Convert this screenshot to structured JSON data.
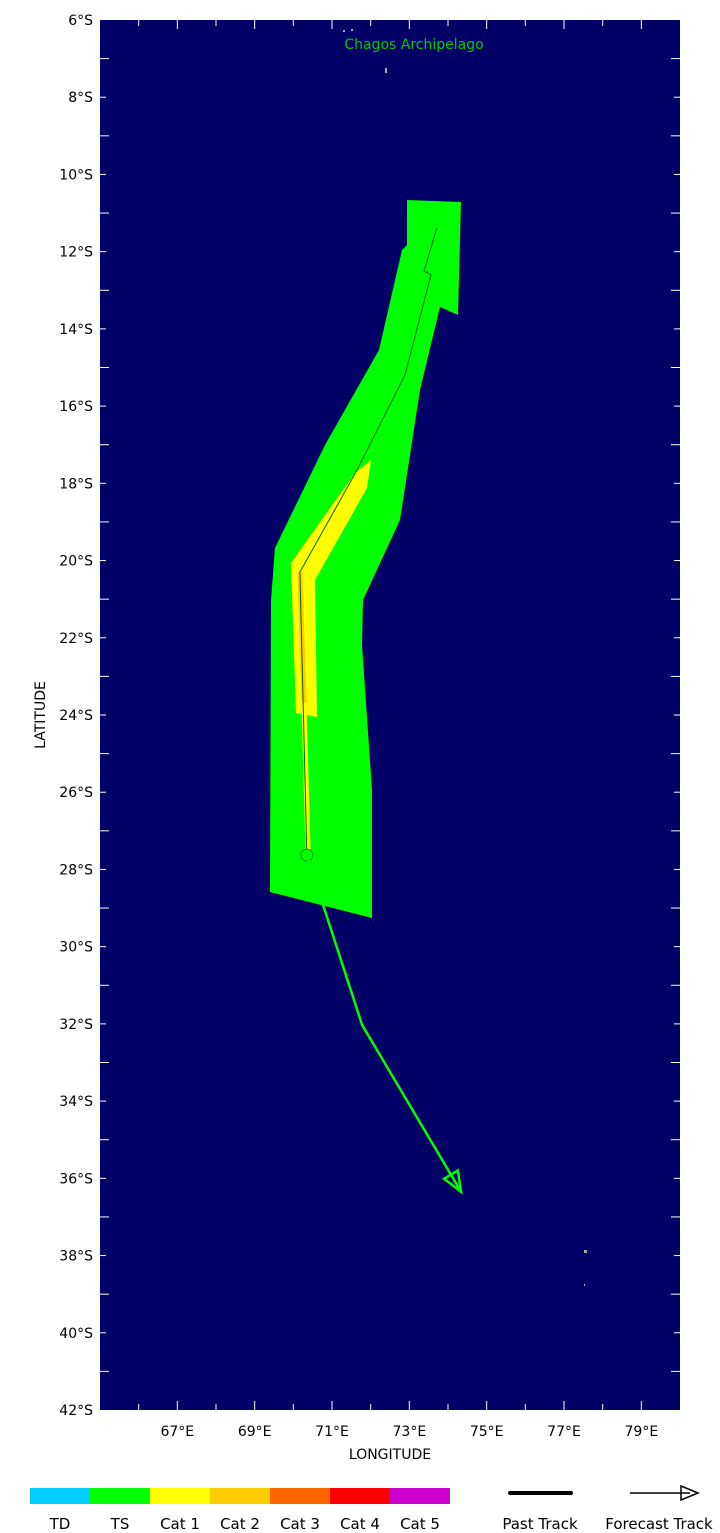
{
  "map": {
    "region_label": "Chagos Archipelago",
    "xlabel": "LONGITUDE",
    "ylabel": "LATITUDE",
    "lon_range": [
      65,
      80
    ],
    "lat_range_south": [
      6,
      42
    ],
    "lon_ticks": [
      "67°E",
      "69°E",
      "71°E",
      "73°E",
      "75°E",
      "77°E",
      "79°E"
    ],
    "lat_ticks": [
      "6°S",
      "8°S",
      "10°S",
      "12°S",
      "14°S",
      "16°S",
      "18°S",
      "20°S",
      "22°S",
      "24°S",
      "26°S",
      "28°S",
      "30°S",
      "32°S",
      "34°S",
      "36°S",
      "38°S",
      "40°S",
      "42°S"
    ],
    "ocean_color": "#000066"
  },
  "past_track": [
    {
      "lon": 73.71,
      "lat": -11.39
    },
    {
      "lon": 73.38,
      "lat": -12.5
    },
    {
      "lon": 73.56,
      "lat": -12.6
    },
    {
      "lon": 72.89,
      "lat": -15.19
    },
    {
      "lon": 71.65,
      "lat": -17.65
    },
    {
      "lon": 70.17,
      "lat": -20.3
    },
    {
      "lon": 70.35,
      "lat": -27.63
    }
  ],
  "forecast_track": [
    {
      "lon": 70.35,
      "lat": -27.63
    },
    {
      "lon": 71.78,
      "lat": -32.03
    },
    {
      "lon": 74.34,
      "lat": -36.35
    }
  ],
  "forecast_color": "#00ff00",
  "legend": {
    "categories": [
      {
        "label": "TD",
        "color": "#00ccff"
      },
      {
        "label": "TS",
        "color": "#00ff00"
      },
      {
        "label": "Cat 1",
        "color": "#ffff00"
      },
      {
        "label": "Cat 2",
        "color": "#ffcc00"
      },
      {
        "label": "Cat 3",
        "color": "#ff6600"
      },
      {
        "label": "Cat 4",
        "color": "#ff0000"
      },
      {
        "label": "Cat 5",
        "color": "#cc00cc"
      }
    ],
    "past_track_label": "Past Track",
    "forecast_track_label": "Forecast Track"
  }
}
